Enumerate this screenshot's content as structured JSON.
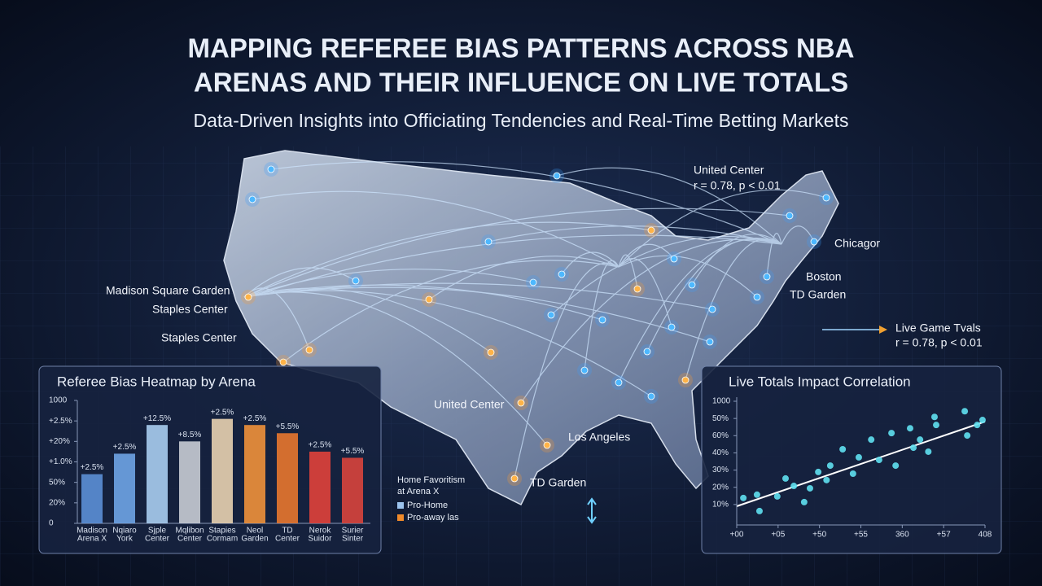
{
  "header": {
    "title": [
      "MAPPING REFEREE BIAS PATTERNS ACROSS NBA",
      "ARENAS AND THEIR INFLUENCE ON LIVE TOTALS"
    ],
    "subtitle": "Data-Driven Insights into Officiating Tendencies and Real-Time Betting Markets"
  },
  "map": {
    "labels": [
      "United Center",
      "r = 0.78, p < 0.01",
      "Chicagor",
      "Boston",
      "TD Garden",
      "Live Game Tvals",
      "r = 0.78, p < 0.01",
      "Madison Square Garden",
      "Staples Center",
      "Staples Center",
      "United Center",
      "Los Angeles",
      "TD Garden"
    ],
    "legend": {
      "title": [
        "Home Favoritism",
        "at Arena X"
      ],
      "items": [
        "Pro-Home",
        "Pro-away las"
      ],
      "colors": [
        "#9cc4ee",
        "#f08a2a"
      ]
    }
  },
  "chart_data": [
    {
      "type": "bar",
      "title": "Referee Bias Heatmap by Arena",
      "categories": [
        [
          "Madison",
          "Arena X"
        ],
        [
          "Nqiaro",
          "York"
        ],
        [
          "Sjple",
          "Center"
        ],
        [
          "Mqlibon",
          "Center"
        ],
        [
          "Stapies",
          "Cormam"
        ],
        [
          "Neol",
          "Garden"
        ],
        [
          "TD",
          "Center"
        ],
        [
          "Nerok",
          "Suidor"
        ],
        [
          "Surier",
          "Sinter"
        ]
      ],
      "values": [
        2.4,
        3.4,
        4.8,
        4.0,
        5.1,
        4.8,
        4.4,
        3.5,
        3.2
      ],
      "value_labels": [
        "+2.5%",
        "+2.5%",
        "+12.5%",
        "+8.5%",
        "+2.5%",
        "+2.5%",
        "+5.5%",
        "+2.5%",
        "+5.5%"
      ],
      "colors": [
        "#5b8fd6",
        "#6ea4e6",
        "#a9cdf0",
        "#c8ccd4",
        "#e8d2b0",
        "#f0913a",
        "#e8772e",
        "#e0413a",
        "#d8443c"
      ],
      "ylim": [
        0,
        6
      ],
      "yticks": [
        {
          "value": 0,
          "label": "0"
        },
        {
          "value": 1,
          "label": "20%"
        },
        {
          "value": 2,
          "label": "50%"
        },
        {
          "value": 3,
          "label": "+1.0%"
        },
        {
          "value": 4,
          "label": "+20%"
        },
        {
          "value": 5,
          "label": "+2.5%"
        },
        {
          "value": 6,
          "label": "1000"
        }
      ]
    },
    {
      "type": "scatter",
      "title": "Live Totals Impact Correlation",
      "color": "#5fe0f0",
      "x": [
        0.16,
        0.49,
        0.55,
        0.98,
        1.18,
        1.38,
        1.63,
        1.77,
        1.97,
        2.17,
        2.26,
        2.56,
        2.81,
        2.95,
        3.25,
        3.44,
        3.74,
        3.84,
        4.19,
        4.27,
        4.43,
        4.63,
        4.78,
        4.82,
        5.51,
        5.57,
        5.81,
        5.94
      ],
      "values": [
        0.38,
        0.57,
        -0.38,
        0.47,
        1.51,
        1.08,
        0.14,
        0.94,
        1.89,
        1.42,
        2.26,
        3.21,
        1.79,
        2.74,
        3.77,
        2.59,
        4.15,
        2.26,
        4.43,
        3.3,
        3.77,
        3.07,
        5.09,
        4.62,
        5.42,
        4.01,
        4.62,
        4.91
      ],
      "xlim": [
        0,
        6
      ],
      "ylim": [
        -1,
        6
      ],
      "xticks": [
        {
          "value": 0,
          "label": "+00"
        },
        {
          "value": 1,
          "label": "+05"
        },
        {
          "value": 2,
          "label": "+50"
        },
        {
          "value": 3,
          "label": "+55"
        },
        {
          "value": 4,
          "label": "360"
        },
        {
          "value": 5,
          "label": "+57"
        },
        {
          "value": 6,
          "label": "408"
        }
      ],
      "yticks": [
        {
          "value": 0,
          "label": "10%"
        },
        {
          "value": 1,
          "label": "20%"
        },
        {
          "value": 2,
          "label": "30%"
        },
        {
          "value": 3,
          "label": "40%"
        },
        {
          "value": 4,
          "label": "60%"
        },
        {
          "value": 5,
          "label": "50%"
        },
        {
          "value": 6,
          "label": "1000"
        }
      ]
    }
  ]
}
